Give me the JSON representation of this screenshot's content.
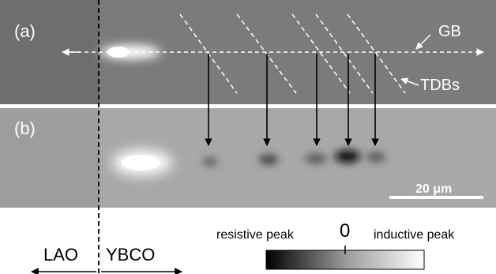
{
  "panel_a": {
    "label": "(a)",
    "gb_label": "GB",
    "tdb_label": "TDBs"
  },
  "panel_b": {
    "label": "(b)",
    "scalebar_label": "20 μm"
  },
  "regions": {
    "left": "LAO",
    "right": "YBCO"
  },
  "colorbar": {
    "left_label": "resistive peak",
    "center_label": "0",
    "right_label": "inductive peak"
  },
  "colors": {
    "panel_a_bg": "#7a7a7a",
    "panel_b_bg": "#a7a7a7",
    "annotation": "#ffffff",
    "arrow": "#000000"
  },
  "peaks": {
    "arrow_count": 5,
    "relative_strength": [
      0.35,
      0.55,
      0.45,
      1.0,
      0.45
    ]
  }
}
